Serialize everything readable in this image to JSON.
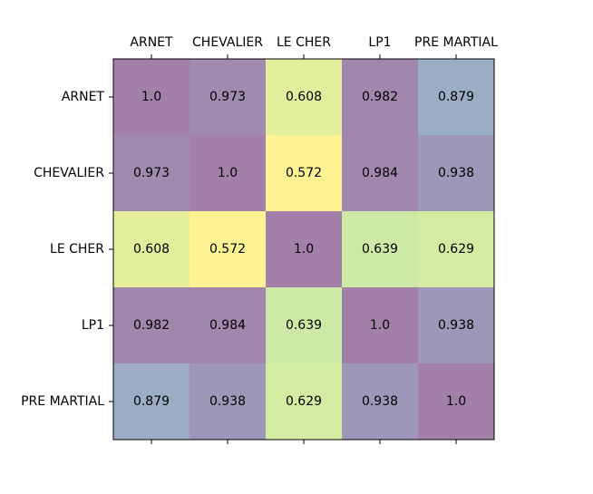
{
  "chart_data": {
    "type": "heatmap",
    "title": "",
    "xlabel": "",
    "ylabel": "",
    "categories_x": [
      "ARNET",
      "CHEVALIER",
      "LE CHER",
      "LP1",
      "PRE MARTIAL"
    ],
    "categories_y": [
      "ARNET",
      "CHEVALIER",
      "LE CHER",
      "LP1",
      "PRE MARTIAL"
    ],
    "values": [
      [
        1.0,
        0.973,
        0.608,
        0.982,
        0.879
      ],
      [
        0.973,
        1.0,
        0.572,
        0.984,
        0.938
      ],
      [
        0.608,
        0.572,
        1.0,
        0.639,
        0.629
      ],
      [
        0.982,
        0.984,
        0.639,
        1.0,
        0.938
      ],
      [
        0.879,
        0.938,
        0.629,
        0.938,
        1.0
      ]
    ],
    "value_labels": [
      [
        "1.0",
        "0.973",
        "0.608",
        "0.982",
        "0.879"
      ],
      [
        "0.973",
        "1.0",
        "0.572",
        "0.984",
        "0.938"
      ],
      [
        "0.608",
        "0.572",
        "1.0",
        "0.639",
        "0.629"
      ],
      [
        "0.982",
        "0.984",
        "0.639",
        "1.0",
        "0.938"
      ],
      [
        "0.879",
        "0.938",
        "0.629",
        "0.938",
        "1.0"
      ]
    ],
    "colormap": "viridis_r",
    "alpha": 0.5,
    "x_ticks_position": "top",
    "grid": false,
    "legend": "none"
  }
}
